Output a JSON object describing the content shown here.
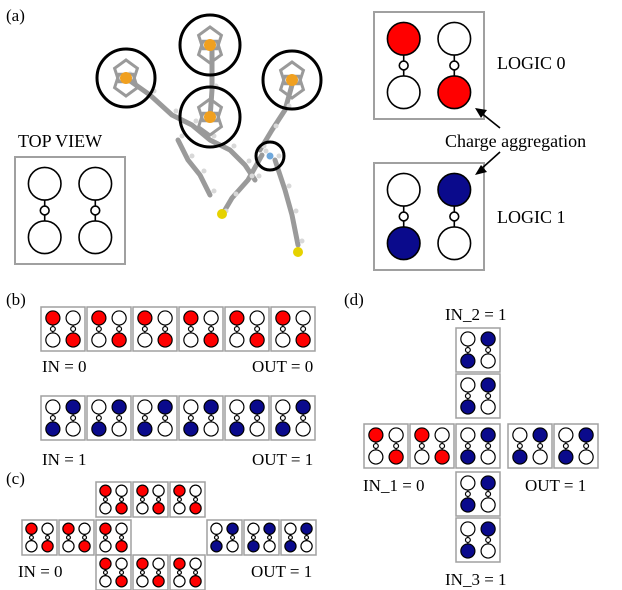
{
  "panel_a": {
    "label": "(a)",
    "top_view": "TOP VIEW",
    "logic0": "LOGIC 0",
    "logic1": "LOGIC 1",
    "charge_aggregation": "Charge aggregation",
    "logic0_cell": [
      "red",
      "white",
      "white",
      "red"
    ],
    "logic1_cell": [
      "white",
      "blue",
      "blue",
      "white"
    ],
    "top_view_cell": [
      "white",
      "white",
      "white",
      "white"
    ]
  },
  "panel_b": {
    "label": "(b)",
    "wire0": {
      "in_label": "IN = 0",
      "out_label": "OUT = 0",
      "cells": [
        0,
        0,
        0,
        0,
        0,
        0
      ]
    },
    "wire1": {
      "in_label": "IN = 1",
      "out_label": "OUT = 1",
      "cells": [
        1,
        1,
        1,
        1,
        1,
        1
      ]
    }
  },
  "panel_c": {
    "label": "(c)",
    "in_label": "IN = 0",
    "out_label": "OUT = 1",
    "top_cells": [
      0,
      0,
      0
    ],
    "left_cells": [
      0,
      0,
      0
    ],
    "bottom_cells": [
      0,
      0,
      0
    ],
    "right_cells": [
      1,
      1,
      1
    ]
  },
  "panel_d": {
    "label": "(d)",
    "in2_label": "IN_2 = 1",
    "in1_label": "IN_1 = 0",
    "in3_label": "IN_3 = 1",
    "out_label": "OUT = 1",
    "top_cells": [
      1,
      1
    ],
    "left_cells": [
      0,
      0
    ],
    "center_cell": 1,
    "right_cells": [
      1,
      1
    ],
    "bottom_cells": [
      1,
      1
    ]
  },
  "colors": {
    "red": "#ff0000",
    "blue": "#0a0a8c",
    "cell_border": "#a0a0a0",
    "dot_stroke": "#000000"
  }
}
